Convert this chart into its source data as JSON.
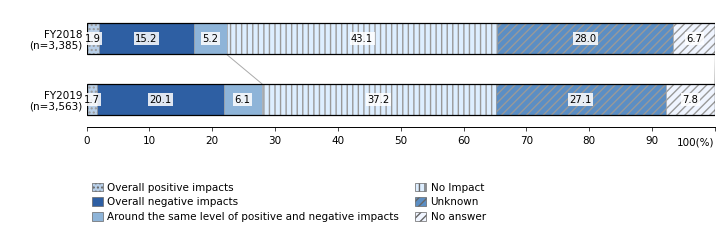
{
  "categories": [
    "FY2018\n(n=3,385)",
    "FY2019\n(n=3,563)"
  ],
  "series": [
    {
      "label": "Overall positive impacts",
      "values": [
        1.9,
        1.7
      ],
      "color": "#b8cfe8",
      "hatch": "...."
    },
    {
      "label": "Overall negative impacts",
      "values": [
        15.2,
        20.1
      ],
      "color": "#2e5fa3",
      "hatch": ""
    },
    {
      "label": "Around the same level of positive and negative impacts",
      "values": [
        5.2,
        6.1
      ],
      "color": "#8eb4d8",
      "hatch": ""
    },
    {
      "label": "No Impact",
      "values": [
        43.1,
        37.2
      ],
      "color": "#ddeeff",
      "hatch": "|||"
    },
    {
      "label": "Unknown",
      "values": [
        28.0,
        27.1
      ],
      "color": "#5b8ec4",
      "hatch": "////"
    },
    {
      "label": "No answer",
      "values": [
        6.7,
        7.8
      ],
      "color": "#f0f5ff",
      "hatch": "////"
    }
  ],
  "xlim": [
    0,
    100
  ],
  "xticks": [
    0,
    10,
    20,
    30,
    40,
    50,
    60,
    70,
    80,
    90,
    100
  ],
  "bar_height": 0.52,
  "font_size": 7.5,
  "label_font_size": 7.2,
  "legend_font_size": 7.5,
  "text_color": "#000000",
  "background_color": "#ffffff",
  "connector_indices": [
    2,
    5
  ]
}
